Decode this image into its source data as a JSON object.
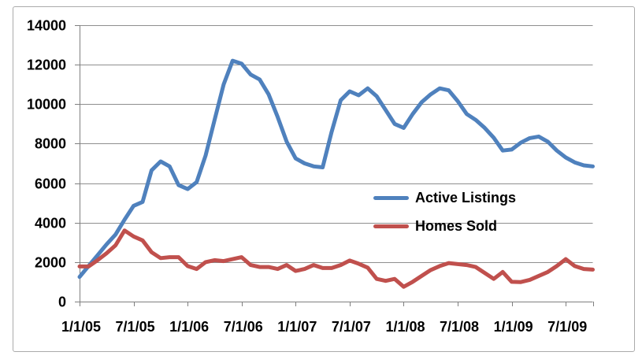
{
  "chart": {
    "background": "#FFFFFF",
    "border_color": "#ABABAB",
    "gridline_color": "#8E8E8E",
    "axis_color": "#7F7F7F",
    "label_color": "#000000"
  },
  "chart_data": {
    "type": "line",
    "title": "",
    "xlabel": "",
    "ylabel": "",
    "ylim": [
      0,
      14000
    ],
    "y_ticks": [
      0,
      2000,
      4000,
      6000,
      8000,
      10000,
      12000,
      14000
    ],
    "grid": "horizontal",
    "legend_position": "center-right",
    "x_tick_interval_months": 6,
    "x_tick_labels": [
      "1/1/05",
      "7/1/05",
      "1/1/06",
      "7/1/06",
      "1/1/07",
      "7/1/07",
      "1/1/08",
      "7/1/08",
      "1/1/09",
      "7/1/09"
    ],
    "months": [
      "1/1/05",
      "2/1/05",
      "3/1/05",
      "4/1/05",
      "5/1/05",
      "6/1/05",
      "7/1/05",
      "8/1/05",
      "9/1/05",
      "10/1/05",
      "11/1/05",
      "12/1/05",
      "1/1/06",
      "2/1/06",
      "3/1/06",
      "4/1/06",
      "5/1/06",
      "6/1/06",
      "7/1/06",
      "8/1/06",
      "9/1/06",
      "10/1/06",
      "11/1/06",
      "12/1/06",
      "1/1/07",
      "2/1/07",
      "3/1/07",
      "4/1/07",
      "5/1/07",
      "6/1/07",
      "7/1/07",
      "8/1/07",
      "9/1/07",
      "10/1/07",
      "11/1/07",
      "12/1/07",
      "1/1/08",
      "2/1/08",
      "3/1/08",
      "4/1/08",
      "5/1/08",
      "6/1/08",
      "7/1/08",
      "8/1/08",
      "9/1/08",
      "10/1/08",
      "11/1/08",
      "12/1/08",
      "1/1/09",
      "2/1/09",
      "3/1/09",
      "4/1/09",
      "5/1/09",
      "6/1/09",
      "7/1/09",
      "8/1/09",
      "9/1/09",
      "10/1/09"
    ],
    "series": [
      {
        "name": "Active Listings",
        "color": "#4F81BD",
        "values": [
          1250,
          1800,
          2350,
          2900,
          3400,
          4150,
          4850,
          5050,
          6650,
          7100,
          6850,
          5900,
          5700,
          6050,
          7400,
          9200,
          11000,
          12200,
          12050,
          11500,
          11250,
          10500,
          9350,
          8100,
          7250,
          7000,
          6850,
          6800,
          8600,
          10200,
          10650,
          10450,
          10800,
          10400,
          9700,
          9000,
          8800,
          9500,
          10100,
          10500,
          10800,
          10700,
          10150,
          9500,
          9200,
          8800,
          8300,
          7650,
          7700,
          8050,
          8280,
          8360,
          8100,
          7650,
          7300,
          7050,
          6900,
          6850
        ]
      },
      {
        "name": "Homes Sold",
        "color": "#C0504D",
        "values": [
          1780,
          1780,
          2100,
          2450,
          2850,
          3600,
          3300,
          3100,
          2500,
          2200,
          2250,
          2250,
          1800,
          1650,
          2000,
          2100,
          2050,
          2150,
          2250,
          1850,
          1750,
          1750,
          1650,
          1850,
          1550,
          1650,
          1850,
          1700,
          1700,
          1850,
          2080,
          1920,
          1720,
          1150,
          1050,
          1150,
          750,
          1000,
          1300,
          1600,
          1800,
          1950,
          1900,
          1850,
          1750,
          1450,
          1150,
          1500,
          1000,
          990,
          1100,
          1300,
          1500,
          1800,
          2150,
          1800,
          1650,
          1620
        ]
      }
    ]
  }
}
